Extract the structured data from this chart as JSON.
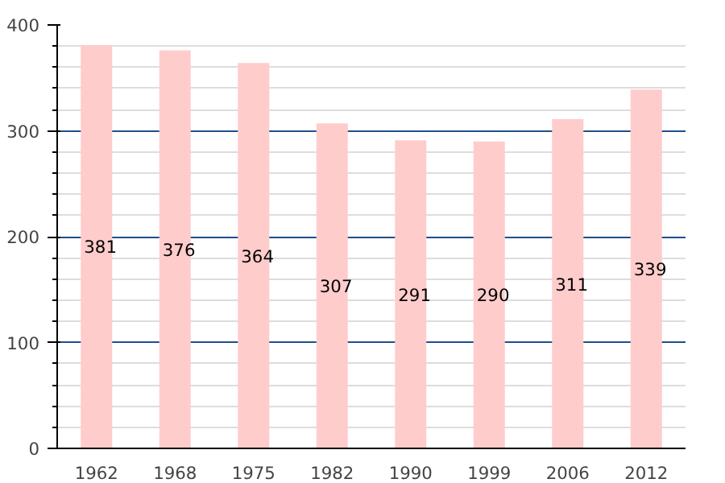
{
  "chart_data": {
    "type": "bar",
    "categories": [
      "1962",
      "1968",
      "1975",
      "1982",
      "1990",
      "1999",
      "2006",
      "2012"
    ],
    "values": [
      381,
      376,
      364,
      307,
      291,
      290,
      311,
      339
    ],
    "color": "#ffcccc",
    "ylim": [
      0,
      400
    ],
    "yticks": [
      0,
      100,
      200,
      300,
      400
    ],
    "grid": "y",
    "data_labels": true
  }
}
